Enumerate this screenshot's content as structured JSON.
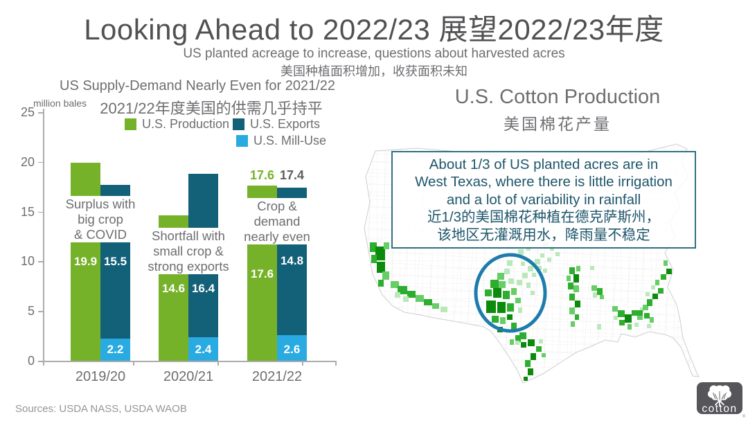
{
  "slide": {
    "title": "Looking Ahead to 2022/23 展望2022/23年度",
    "subtitle_en": "US planted acreage to increase, questions about harvested acres",
    "subtitle_zh": "美国种植面积增加，收获面积未知",
    "sources": "Sources: USDA NASS, USDA WAOB",
    "logo_text": "cotton"
  },
  "chart_data": {
    "type": "bar",
    "title": "US Supply-Demand Nearly Even for 2021/22",
    "title_zh": "2021/22年度美国的供需几乎持平",
    "unit_label": "million bales",
    "categories": [
      "2019/20",
      "2020/21",
      "2021/22"
    ],
    "series": [
      {
        "name": "U.S. Production",
        "color": "#76B229",
        "values": [
          19.9,
          14.6,
          17.6
        ]
      },
      {
        "name": "U.S. Exports",
        "color": "#136079",
        "values": [
          15.5,
          16.4,
          14.8
        ]
      },
      {
        "name": "U.S. Mill-Use",
        "color": "#29ABE2",
        "values": [
          2.2,
          2.4,
          2.6
        ]
      }
    ],
    "stacking": "U.S. Exports stacked on top of U.S. Mill-Use; U.S. Production is a separate bar",
    "ylim": [
      0,
      25
    ],
    "yticks": [
      0,
      5,
      10,
      15,
      20,
      25
    ],
    "annotations": [
      {
        "lines": [
          "Surplus with",
          "big crop",
          "& COVID"
        ]
      },
      {
        "lines": [
          "Shortfall with",
          "small crop &",
          "strong exports"
        ]
      },
      {
        "lines": [
          "Crop &",
          "demand",
          "nearly even"
        ]
      }
    ],
    "top_labels": [
      {
        "text": "17.6",
        "color": "#76B229"
      },
      {
        "text": "17.4",
        "color": "#5e5f61"
      }
    ]
  },
  "map": {
    "title": "U.S. Cotton Production",
    "title_zh": "美国棉花产量",
    "callout": {
      "lines": [
        "About 1/3 of US planted acres are in",
        "West Texas, where there is little irrigation",
        "and a lot of variability in rainfall",
        "近1/3的美国棉花种植在德克萨斯州，",
        "该地区无灌溉用水，降雨量不稳定"
      ]
    },
    "shades": [
      "#0c8a0c",
      "#2eae2e",
      "#67cd67",
      "#b9e8b9"
    ],
    "regions": [
      {
        "name": "california-valley",
        "cells": [
          [
            12,
            150,
            10,
            14,
            1
          ],
          [
            20,
            156,
            14,
            20,
            0
          ],
          [
            32,
            150,
            8,
            10,
            2
          ],
          [
            22,
            178,
            12,
            16,
            0
          ],
          [
            14,
            168,
            8,
            12,
            1
          ],
          [
            30,
            192,
            10,
            12,
            2
          ],
          [
            24,
            204,
            8,
            10,
            1
          ],
          [
            14,
            214,
            10,
            10,
            2
          ],
          [
            20,
            226,
            8,
            8,
            1
          ]
        ]
      },
      {
        "name": "southwest-band",
        "cells": [
          [
            42,
            206,
            12,
            10,
            2
          ],
          [
            52,
            213,
            14,
            12,
            1
          ],
          [
            66,
            220,
            12,
            10,
            1
          ],
          [
            78,
            226,
            12,
            10,
            2
          ],
          [
            90,
            232,
            12,
            9,
            1
          ],
          [
            102,
            238,
            10,
            8,
            2
          ],
          [
            114,
            243,
            10,
            8,
            3
          ],
          [
            60,
            228,
            8,
            8,
            3
          ],
          [
            48,
            222,
            8,
            8,
            3
          ]
        ]
      },
      {
        "name": "west-texas",
        "cells": [
          [
            196,
            194,
            10,
            10,
            2
          ],
          [
            206,
            188,
            8,
            8,
            3
          ],
          [
            186,
            204,
            12,
            12,
            1
          ],
          [
            198,
            206,
            10,
            10,
            2
          ],
          [
            212,
            202,
            8,
            8,
            3
          ],
          [
            178,
            218,
            10,
            10,
            1
          ],
          [
            190,
            216,
            12,
            14,
            0
          ],
          [
            204,
            220,
            10,
            12,
            1
          ],
          [
            216,
            216,
            8,
            10,
            2
          ],
          [
            180,
            234,
            14,
            18,
            0
          ],
          [
            196,
            236,
            12,
            16,
            0
          ],
          [
            210,
            238,
            10,
            12,
            1
          ],
          [
            188,
            256,
            10,
            10,
            1
          ],
          [
            200,
            258,
            8,
            10,
            2
          ],
          [
            210,
            254,
            8,
            8,
            0
          ],
          [
            216,
            266,
            8,
            10,
            1
          ],
          [
            196,
            272,
            8,
            8,
            0
          ],
          [
            222,
            230,
            8,
            8,
            2
          ],
          [
            226,
            244,
            6,
            8,
            3
          ],
          [
            224,
            204,
            8,
            8,
            3
          ],
          [
            232,
            194,
            8,
            8,
            3
          ],
          [
            240,
            184,
            8,
            8,
            3
          ],
          [
            230,
            178,
            6,
            6,
            3
          ],
          [
            246,
            194,
            6,
            6,
            3
          ],
          [
            238,
            208,
            6,
            8,
            3
          ],
          [
            244,
            220,
            6,
            6,
            3
          ],
          [
            250,
            174,
            8,
            8,
            3
          ],
          [
            258,
            166,
            6,
            6,
            3
          ],
          [
            226,
            160,
            8,
            8,
            3
          ],
          [
            238,
            156,
            6,
            6,
            3
          ],
          [
            210,
            176,
            8,
            8,
            3
          ],
          [
            222,
            284,
            8,
            10,
            1
          ],
          [
            230,
            294,
            8,
            8,
            0
          ],
          [
            214,
            290,
            6,
            8,
            2
          ]
        ]
      },
      {
        "name": "plains-specks",
        "cells": [
          [
            252,
            184,
            8,
            6,
            3
          ],
          [
            262,
            188,
            6,
            6,
            3
          ],
          [
            262,
            150,
            8,
            8,
            3
          ],
          [
            272,
            156,
            6,
            6,
            3
          ],
          [
            280,
            164,
            6,
            6,
            3
          ],
          [
            268,
            172,
            6,
            6,
            3
          ]
        ]
      },
      {
        "name": "blacklands",
        "cells": [
          [
            300,
            186,
            8,
            10,
            1
          ],
          [
            306,
            196,
            8,
            12,
            0
          ],
          [
            298,
            208,
            8,
            10,
            1
          ],
          [
            306,
            212,
            8,
            10,
            2
          ],
          [
            300,
            224,
            8,
            10,
            1
          ],
          [
            308,
            234,
            8,
            10,
            0
          ],
          [
            300,
            244,
            8,
            10,
            2
          ],
          [
            308,
            254,
            6,
            8,
            1
          ],
          [
            302,
            264,
            6,
            8,
            2
          ],
          [
            310,
            184,
            6,
            8,
            2
          ],
          [
            296,
            198,
            6,
            8,
            2
          ]
        ]
      },
      {
        "name": "texas-coast",
        "cells": [
          [
            228,
            280,
            10,
            10,
            1
          ],
          [
            240,
            290,
            10,
            10,
            0
          ],
          [
            252,
            300,
            8,
            8,
            1
          ],
          [
            244,
            310,
            8,
            10,
            0
          ],
          [
            236,
            320,
            8,
            10,
            1
          ],
          [
            240,
            332,
            8,
            10,
            0
          ],
          [
            234,
            344,
            6,
            6,
            0
          ],
          [
            256,
            290,
            6,
            6,
            3
          ],
          [
            222,
            292,
            6,
            6,
            3
          ],
          [
            260,
            310,
            6,
            6,
            2
          ]
        ]
      },
      {
        "name": "delta",
        "cells": [
          [
            332,
            212,
            8,
            8,
            2
          ],
          [
            340,
            216,
            8,
            10,
            1
          ],
          [
            334,
            222,
            6,
            8,
            3
          ],
          [
            344,
            226,
            6,
            6,
            2
          ],
          [
            330,
            184,
            6,
            6,
            3
          ],
          [
            340,
            268,
            6,
            8,
            3
          ]
        ]
      },
      {
        "name": "southeast",
        "cells": [
          [
            362,
            242,
            8,
            8,
            2
          ],
          [
            370,
            248,
            10,
            10,
            1
          ],
          [
            380,
            254,
            10,
            12,
            0
          ],
          [
            390,
            248,
            8,
            8,
            1
          ],
          [
            398,
            254,
            8,
            8,
            2
          ],
          [
            372,
            262,
            8,
            8,
            1
          ],
          [
            384,
            268,
            6,
            8,
            2
          ],
          [
            394,
            266,
            6,
            6,
            3
          ],
          [
            364,
            256,
            6,
            6,
            3
          ],
          [
            402,
            244,
            6,
            6,
            3
          ],
          [
            408,
            252,
            8,
            8,
            1
          ],
          [
            416,
            258,
            6,
            8,
            2
          ],
          [
            412,
            268,
            6,
            6,
            3
          ]
        ]
      },
      {
        "name": "carolinas",
        "cells": [
          [
            398,
            248,
            8,
            8,
            1
          ],
          [
            406,
            240,
            8,
            8,
            2
          ],
          [
            412,
            232,
            8,
            10,
            1
          ],
          [
            420,
            224,
            8,
            8,
            0
          ],
          [
            428,
            216,
            8,
            8,
            1
          ],
          [
            424,
            204,
            6,
            8,
            2
          ],
          [
            432,
            196,
            8,
            8,
            1
          ],
          [
            440,
            188,
            8,
            8,
            0
          ],
          [
            436,
            176,
            6,
            8,
            2
          ],
          [
            444,
            168,
            8,
            8,
            1
          ],
          [
            452,
            178,
            6,
            6,
            3
          ],
          [
            448,
            196,
            6,
            6,
            3
          ],
          [
            418,
            212,
            6,
            6,
            3
          ],
          [
            410,
            222,
            6,
            6,
            3
          ],
          [
            456,
            160,
            6,
            6,
            3
          ],
          [
            452,
            150,
            6,
            6,
            2
          ]
        ]
      },
      {
        "name": "virginia-speck",
        "cells": [
          [
            452,
            140,
            6,
            6,
            3
          ]
        ]
      }
    ],
    "circle_color": "#1E7CAD"
  }
}
